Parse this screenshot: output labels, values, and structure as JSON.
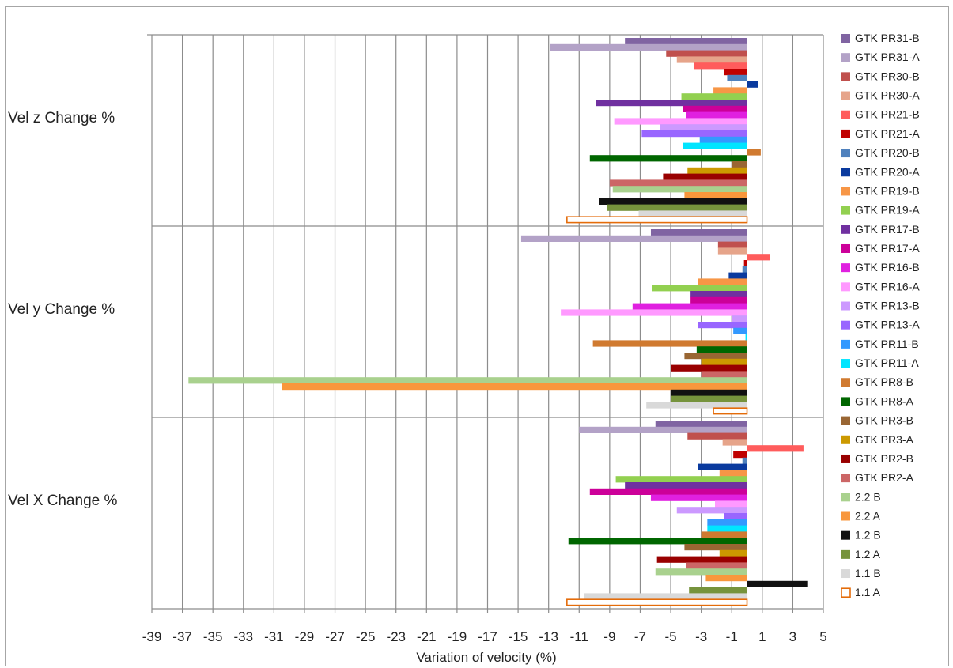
{
  "chart_data": {
    "type": "bar",
    "orientation": "horizontal",
    "xlabel": "Variation of velocity (%)",
    "xlim": [
      -39,
      5
    ],
    "xticks": [
      -39,
      -37,
      -35,
      -33,
      -31,
      -29,
      -27,
      -25,
      -23,
      -21,
      -19,
      -17,
      -15,
      -13,
      -11,
      -9,
      -7,
      -5,
      -3,
      -1,
      1,
      3,
      5
    ],
    "categories": [
      "Vel z Change %",
      "Vel y Change %",
      "Vel X Change %"
    ],
    "grid": true,
    "legend_position": "right",
    "series": [
      {
        "name": "GTK PR31-B",
        "color": "#8064a2",
        "values": [
          -8.0,
          -6.3,
          -6.0
        ]
      },
      {
        "name": "GTK PR31-A",
        "color": "#b3a2c7",
        "values": [
          -12.9,
          -14.8,
          -11.0
        ]
      },
      {
        "name": "GTK PR30-B",
        "color": "#c0504d",
        "values": [
          -5.3,
          -1.9,
          -3.9
        ]
      },
      {
        "name": "GTK PR30-A",
        "color": "#e6a48a",
        "values": [
          -4.6,
          -1.9,
          -1.6
        ]
      },
      {
        "name": "GTK PR21-B",
        "color": "#ff5c5c",
        "values": [
          -3.5,
          1.5,
          3.7
        ]
      },
      {
        "name": "GTK PR21-A",
        "color": "#c00000",
        "values": [
          -1.5,
          -0.2,
          -0.9
        ]
      },
      {
        "name": "GTK PR20-B",
        "color": "#4f81bd",
        "values": [
          -1.3,
          -0.3,
          -0.3
        ]
      },
      {
        "name": "GTK PR20-A",
        "color": "#0a3a9e",
        "values": [
          0.7,
          -1.2,
          -3.2
        ]
      },
      {
        "name": "GTK PR19-B",
        "color": "#f79646",
        "values": [
          -2.2,
          -3.2,
          -1.8
        ]
      },
      {
        "name": "GTK PR19-A",
        "color": "#92d050",
        "values": [
          -4.3,
          -6.2,
          -8.6
        ]
      },
      {
        "name": "GTK PR17-B",
        "color": "#7030a0",
        "values": [
          -9.9,
          -3.7,
          -8.0
        ]
      },
      {
        "name": "GTK PR17-A",
        "color": "#cc0099",
        "values": [
          -4.2,
          -3.7,
          -10.3
        ]
      },
      {
        "name": "GTK PR16-B",
        "color": "#e020e0",
        "values": [
          -4.0,
          -7.5,
          -6.3
        ]
      },
      {
        "name": "GTK PR16-A",
        "color": "#ff99ff",
        "values": [
          -8.7,
          -12.2,
          -2.1
        ]
      },
      {
        "name": "GTK PR13-B",
        "color": "#cc99ff",
        "values": [
          -5.7,
          -1.0,
          -4.6
        ]
      },
      {
        "name": "GTK PR13-A",
        "color": "#9966ff",
        "values": [
          -6.9,
          -3.2,
          -1.5
        ]
      },
      {
        "name": "GTK PR11-B",
        "color": "#3399ff",
        "values": [
          -3.1,
          -0.9,
          -2.6
        ]
      },
      {
        "name": "GTK PR11-A",
        "color": "#00e5ff",
        "values": [
          -4.2,
          -0.1,
          -2.6
        ]
      },
      {
        "name": "GTK PR8-B",
        "color": "#d07a30",
        "values": [
          0.9,
          -10.1,
          -3.0
        ]
      },
      {
        "name": "GTK PR8-A",
        "color": "#006600",
        "values": [
          -10.3,
          -3.3,
          -11.7
        ]
      },
      {
        "name": "GTK PR3-B",
        "color": "#996633",
        "values": [
          -1.0,
          -4.1,
          -4.1
        ]
      },
      {
        "name": "GTK PR3-A",
        "color": "#cc9900",
        "values": [
          -3.9,
          -3.0,
          -1.8
        ]
      },
      {
        "name": "GTK PR2-B",
        "color": "#990000",
        "values": [
          -5.5,
          -5.0,
          -5.9
        ]
      },
      {
        "name": "GTK PR2-A",
        "color": "#cc6666",
        "values": [
          -9.0,
          -3.0,
          -4.0
        ]
      },
      {
        "name": "2.2 B",
        "color": "#a9d18e",
        "values": [
          -8.8,
          -36.6,
          -6.0
        ]
      },
      {
        "name": "2.2 A",
        "color": "#f8973c",
        "values": [
          -4.1,
          -30.5,
          -2.7
        ]
      },
      {
        "name": "1.2 B",
        "color": "#111111",
        "values": [
          -9.7,
          -5.0,
          4.0
        ]
      },
      {
        "name": "1.2 A",
        "color": "#76933c",
        "values": [
          -9.2,
          -5.0,
          -3.8
        ]
      },
      {
        "name": "1.1 B",
        "color": "#d9d9d9",
        "values": [
          -7.1,
          -6.6,
          -10.7
        ]
      },
      {
        "name": "1.1 A",
        "color": "#ffffff",
        "outline": "#e46c0a",
        "values": [
          -11.8,
          -2.2,
          -11.8
        ]
      }
    ]
  }
}
